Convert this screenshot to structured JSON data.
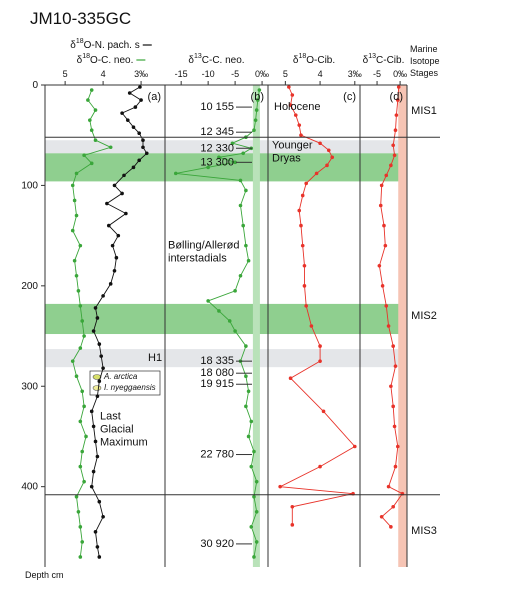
{
  "title": "JM10-335GC",
  "y_label": "Depth cm",
  "ylim": [
    0,
    480
  ],
  "yticks": [
    0,
    100,
    200,
    300,
    400
  ],
  "stages_header": [
    "Marine",
    "Isotope",
    "Stages"
  ],
  "stages": [
    "MIS1",
    "MIS2",
    "MIS3"
  ],
  "boundaries": [
    52,
    408
  ],
  "bands": [
    {
      "color": "#e4e6e9",
      "from": 55,
      "to": 68
    },
    {
      "color": "#8fcf8f",
      "from": 68,
      "to": 96
    },
    {
      "color": "#8fcf8f",
      "from": 218,
      "to": 248
    },
    {
      "color": "#e4e6e9",
      "from": 263,
      "to": 281
    }
  ],
  "ages": [
    {
      "label": "10 155",
      "depth": 22
    },
    {
      "label": "12 345",
      "depth": 47
    },
    {
      "label": "12 330",
      "depth": 63
    },
    {
      "label": "13 300",
      "depth": 77
    },
    {
      "label": "18 335",
      "depth": 275
    },
    {
      "label": "18 080",
      "depth": 287
    },
    {
      "label": "19 915",
      "depth": 298
    },
    {
      "label": "22 780",
      "depth": 368
    },
    {
      "label": "30 920",
      "depth": 457
    }
  ],
  "annotations": [
    {
      "lines": [
        "Holocene"
      ]
    },
    {
      "lines": [
        "Younger",
        "Dryas"
      ]
    },
    {
      "lines": [
        "Bølling/Allerød",
        "interstadials"
      ]
    },
    {
      "lines": [
        "H1"
      ]
    },
    {
      "lines": [
        "Last",
        "Glacial",
        "Maximum"
      ]
    }
  ],
  "legend_items": [
    "A. arctica",
    "I. nyeggaensis"
  ],
  "chart_data": [
    {
      "type": "line",
      "panel": "(a)",
      "xlim": [
        5.53,
        2.37
      ],
      "xticks": [
        5,
        4,
        {
          "value": 3,
          "label": "3‰"
        }
      ],
      "series": [
        {
          "name": "δ18O-N. pach. s",
          "color": "#111111",
          "depth": [
            2,
            8,
            15,
            22,
            28,
            35,
            42,
            48,
            55,
            62,
            68,
            75,
            82,
            90,
            100,
            108,
            118,
            128,
            140,
            150,
            160,
            172,
            185,
            198,
            210,
            222,
            232,
            245,
            258,
            270,
            282,
            295,
            310,
            325,
            340,
            355,
            370,
            385,
            400,
            415,
            430,
            445,
            460,
            470
          ],
          "values": [
            3.03,
            3.3,
            3.0,
            3.15,
            3.5,
            3.35,
            3.2,
            3.05,
            2.95,
            2.95,
            2.85,
            3.05,
            3.2,
            3.45,
            3.7,
            3.5,
            3.9,
            3.4,
            3.85,
            3.6,
            3.75,
            3.65,
            3.7,
            3.8,
            4.0,
            4.2,
            4.15,
            4.25,
            4.1,
            4.05,
            4.0,
            4.1,
            4.15,
            4.3,
            4.25,
            4.2,
            4.15,
            4.25,
            4.3,
            4.1,
            4.0,
            4.2,
            4.15,
            4.1
          ]
        },
        {
          "name": "δ18O-C. neo.",
          "color": "#3aa63a",
          "depth": [
            5,
            15,
            25,
            35,
            45,
            55,
            62,
            70,
            78,
            88,
            100,
            115,
            130,
            145,
            160,
            175,
            190,
            205,
            220,
            235,
            250,
            262,
            275,
            290,
            305,
            320,
            335,
            350,
            365,
            380,
            395,
            410,
            425,
            440,
            455,
            470
          ],
          "values": [
            4.3,
            4.4,
            4.2,
            4.35,
            4.3,
            4.2,
            3.8,
            4.5,
            4.3,
            4.7,
            4.8,
            4.75,
            4.7,
            4.8,
            4.6,
            4.75,
            4.7,
            4.65,
            4.6,
            4.55,
            4.5,
            4.6,
            4.8,
            4.7,
            4.55,
            4.5,
            4.6,
            4.45,
            4.55,
            4.6,
            4.5,
            4.7,
            4.65,
            4.6,
            4.55,
            4.6
          ]
        }
      ]
    },
    {
      "type": "line",
      "panel": "(b)",
      "xlim": [
        -18,
        1.1
      ],
      "xticks": [
        -15,
        -10,
        -5,
        {
          "value": 0,
          "label": "0‰"
        }
      ],
      "band": {
        "color": "#b9e2b9",
        "from": -1.7,
        "to": -0.4
      },
      "series": [
        {
          "name": "δ13C-C. neo.",
          "color": "#3aa63a",
          "depth": [
            5,
            15,
            25,
            35,
            45,
            52,
            58,
            63,
            68,
            72,
            77,
            82,
            88,
            95,
            105,
            120,
            140,
            160,
            175,
            190,
            205,
            215,
            225,
            235,
            245,
            260,
            275,
            290,
            305,
            320,
            335,
            350,
            365,
            380,
            395,
            410,
            425,
            440,
            455,
            470
          ],
          "values": [
            -0.5,
            -0.8,
            -1,
            -1.2,
            -1.5,
            -3,
            -5.5,
            -2,
            -3.5,
            -8,
            -5,
            -10,
            -16,
            -4,
            -3,
            -4,
            -3.5,
            -3,
            -2.5,
            -4,
            -5,
            -10,
            -8,
            -6,
            -5,
            -3,
            -4,
            -3,
            -2.5,
            -3,
            -2,
            -2.5,
            -1.5,
            -2,
            -1,
            -1.5,
            -1,
            -2,
            -1,
            -1.5
          ]
        }
      ]
    },
    {
      "type": "line",
      "panel": "(c)",
      "xlim": [
        5.5,
        2.85
      ],
      "xticks": [
        5,
        4,
        {
          "value": 3,
          "label": "3‰"
        }
      ],
      "series": [
        {
          "name": "δ18O-Cib.",
          "color": "#e8332a",
          "depth": [
            2,
            10,
            20,
            30,
            40,
            50,
            58,
            65,
            72,
            80,
            88,
            98,
            110,
            125,
            140,
            160,
            180,
            200,
            220,
            240,
            260,
            275,
            292,
            325,
            360,
            380,
            400,
            407,
            420,
            438
          ],
          "values": [
            4.9,
            4.8,
            4.85,
            4.7,
            4.6,
            4.55,
            4.0,
            3.75,
            3.65,
            3.8,
            4.1,
            4.4,
            4.5,
            4.6,
            4.55,
            4.5,
            4.45,
            4.45,
            4.4,
            4.25,
            4.0,
            4.0,
            4.85,
            3.9,
            3.0,
            4.0,
            5.15,
            3.05,
            4.8,
            4.8
          ]
        }
      ]
    },
    {
      "type": "line",
      "panel": "(d)",
      "xlim": [
        -8.7,
        1.5
      ],
      "xticks": [
        -5,
        {
          "value": 0,
          "label": "0‰"
        }
      ],
      "band": {
        "color": "#f6c4b4",
        "from": -0.4,
        "to": 1.5
      },
      "series": [
        {
          "name": "δ13C-Cib.",
          "color": "#e8332a",
          "depth": [
            2,
            15,
            30,
            45,
            60,
            70,
            80,
            90,
            100,
            120,
            140,
            160,
            180,
            200,
            220,
            240,
            260,
            280,
            300,
            320,
            340,
            360,
            380,
            400,
            407,
            420,
            430,
            440
          ],
          "values": [
            -0.3,
            -0.5,
            -0.8,
            -1,
            -1.5,
            -1.2,
            -2,
            -3,
            -4,
            -4.2,
            -3.5,
            -3.2,
            -4.5,
            -3.8,
            -3,
            -2.5,
            -1.5,
            -1,
            -2,
            -1.5,
            -1.2,
            -0.5,
            -1,
            -2.5,
            0.5,
            -1.5,
            -4,
            -2
          ]
        }
      ]
    }
  ]
}
